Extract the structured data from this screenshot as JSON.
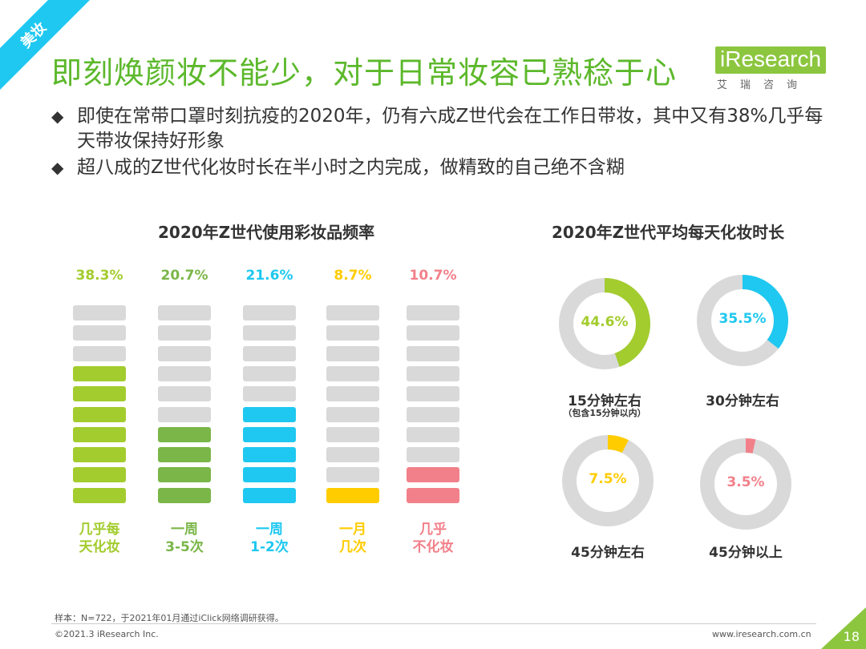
{
  "corner_tag": "美妆",
  "title": "即刻焕颜妆不能少，对于日常妆容已熟稔于心",
  "logo": {
    "word": "iResearch",
    "sub": "艾瑞咨询"
  },
  "bullets": [
    "即使在常带口罩时刻抗疫的2020年，仍有六成Z世代会在工作日带妆，其中又有38%几乎每天带妆保持好形象",
    "超八成的Z世代化妆时长在半小时之内完成，做精致的自己绝不含糊"
  ],
  "chart_data": [
    {
      "type": "bar",
      "title": "2020年Z世代使用彩妆品频率",
      "categories": [
        "几乎每天化妆",
        "一周3-5次",
        "一周1-2次",
        "一月几次",
        "几乎不化妆"
      ],
      "category_lines": [
        [
          "几乎每",
          "天化妆"
        ],
        [
          "一周",
          "3-5次"
        ],
        [
          "一周",
          "1-2次"
        ],
        [
          "一月",
          "几次"
        ],
        [
          "几乎",
          "不化妆"
        ]
      ],
      "values": [
        38.3,
        20.7,
        21.6,
        8.7,
        10.7
      ],
      "value_labels": [
        "38.3%",
        "20.7%",
        "21.6%",
        "8.7%",
        "10.7%"
      ],
      "colors": [
        "#a3cc2e",
        "#7ab648",
        "#1ec8f0",
        "#ffcc00",
        "#f2808a"
      ],
      "filled_segments": [
        7,
        4,
        5,
        1,
        2
      ],
      "total_segments": 10
    },
    {
      "type": "pie",
      "title": "2020年Z世代平均每天化妆时长",
      "categories": [
        "15分钟左右",
        "30分钟左右",
        "45分钟左右",
        "45分钟以上"
      ],
      "subnotes": [
        "（包含15分钟以内）",
        "",
        "",
        ""
      ],
      "values": [
        44.6,
        35.5,
        7.5,
        3.5
      ],
      "value_labels": [
        "44.6%",
        "35.5%",
        "7.5%",
        "3.5%"
      ],
      "colors": [
        "#a3cc2e",
        "#1ec8f0",
        "#ffcc00",
        "#f2808a"
      ]
    }
  ],
  "footer": {
    "note": "样本：N=722，于2021年01月通过iClick网络调研获得。",
    "copyright": "©2021.3 iResearch Inc.",
    "url": "www.iresearch.com.cn",
    "page": "18"
  },
  "colors": {
    "title_green": "#5cb82b",
    "track_gray": "#d9d9d9",
    "accent_green": "#8cc63f"
  }
}
